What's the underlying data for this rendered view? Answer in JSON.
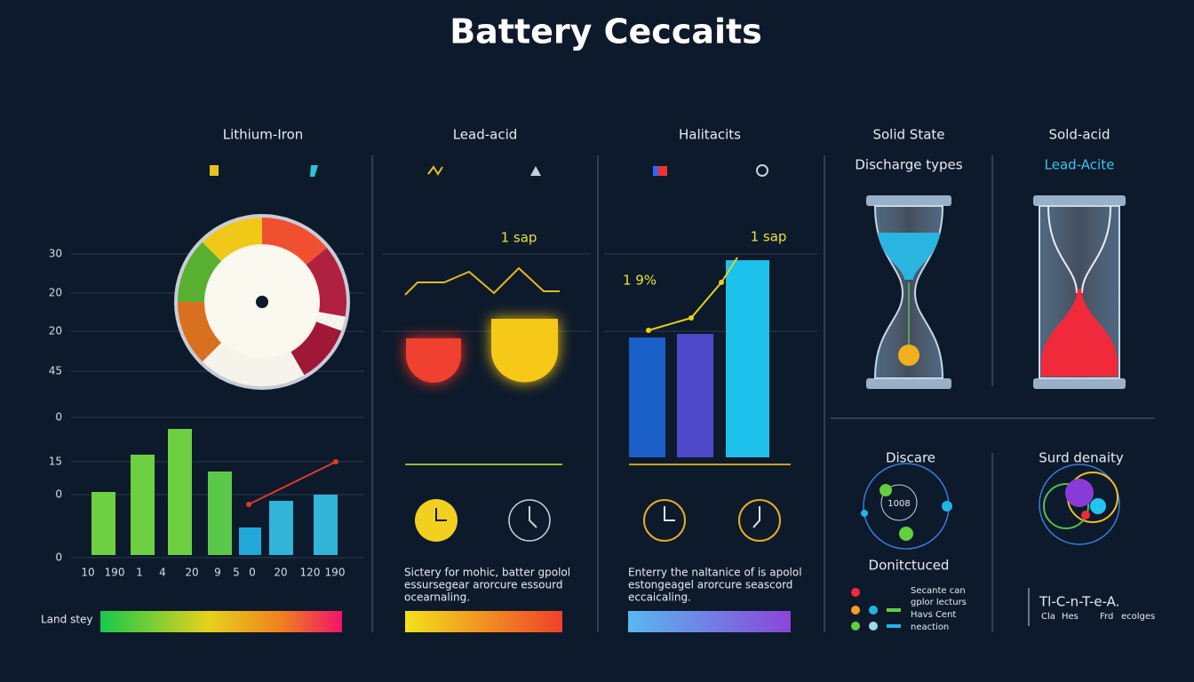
{
  "title": "Battery Ceccaits",
  "panels": [
    "Lithium-Iron",
    "Lead-acid",
    "Halitacits",
    "Solid State",
    "Sold-acid"
  ],
  "subheads": [
    "Discharge types",
    "Lead-Acite"
  ],
  "y_labels": [
    "30",
    "20",
    "20",
    "45",
    "0",
    "15",
    "0",
    "0"
  ],
  "x_labels": [
    "10",
    "190",
    "1",
    "4",
    "20",
    "9",
    "5",
    "0",
    "20",
    "120",
    "190"
  ],
  "land_label": "Land stey",
  "annotations": [
    "1 sap",
    "1 sap",
    "1 9%"
  ],
  "paragraphs": [
    [
      "Sictery for mohic, batter gpolol",
      "essursegear arorcure essourd",
      "ocearnaling."
    ],
    [
      "Enterry the naltanice of is apolol",
      "estongeagel arorcure seascord",
      "eccaicaling."
    ]
  ],
  "bottom_right": {
    "discare": "Discare",
    "surd": "Surd denaity",
    "node": "1008",
    "donit": "Donitctuced",
    "legend": [
      "Secante can",
      "gplor lecturs",
      "Havs Cent",
      "neaction"
    ],
    "code": "Tl-C-n-T-e-A.",
    "code_sub": [
      "Cla",
      "Hes",
      "Frd",
      "ecolges"
    ]
  }
}
